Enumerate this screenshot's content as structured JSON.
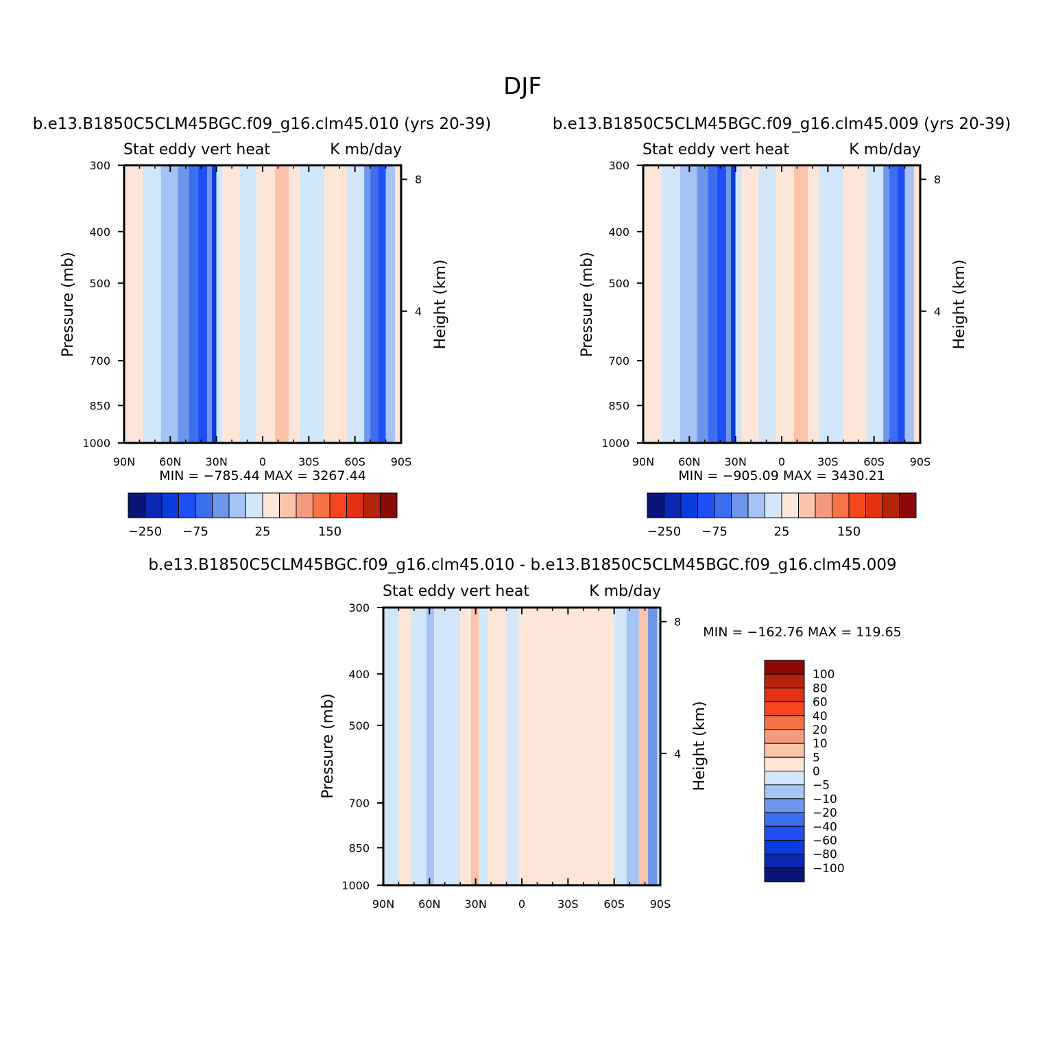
{
  "page_title": "DJF",
  "panels": [
    {
      "title": "b.e13.B1850C5CLM45BGC.f09_g16.clm45.010 (yrs 20-39)",
      "left_label": "Stat eddy vert heat",
      "right_label": "K mb/day",
      "stats": "MIN = -785.44   MAX = 3267.44",
      "ylabel": "Pressure (mb)",
      "ylabel_right": "Height (km)"
    },
    {
      "title": "b.e13.B1850C5CLM45BGC.f09_g16.clm45.009 (yrs 20-39)",
      "left_label": "Stat eddy vert heat",
      "right_label": "K mb/day",
      "stats": "MIN = -905.09   MAX = 3430.21",
      "ylabel": "Pressure (mb)",
      "ylabel_right": "Height (km)"
    },
    {
      "title": "b.e13.B1850C5CLM45BGC.f09_g16.clm45.010 - b.e13.B1850C5CLM45BGC.f09_g16.clm45.009",
      "left_label": "Stat eddy vert heat",
      "right_label": "K mb/day",
      "stats": "MIN = -162.76   MAX = 119.65",
      "ylabel": "Pressure (mb)",
      "ylabel_right": "Height (km)"
    }
  ],
  "chart_data": [
    {
      "type": "heatmap",
      "x_axis": {
        "ticks": [
          "90N",
          "60N",
          "30N",
          "0",
          "30S",
          "60S",
          "90S"
        ],
        "range": [
          90,
          -90
        ]
      },
      "y_axis": {
        "ticks": [
          300,
          400,
          500,
          700,
          850,
          1000
        ],
        "range": [
          300,
          1000
        ],
        "scale": "log"
      },
      "y_axis_right": {
        "ticks": [
          8,
          4
        ]
      },
      "colorbar": {
        "orientation": "horizontal",
        "tick_labels": [
          "-250",
          "-75",
          "25",
          "150"
        ],
        "colors": [
          "#0a1478",
          "#0a28b4",
          "#0a3cdc",
          "#1e50f5",
          "#3c6ef0",
          "#6e96eb",
          "#a5c3f5",
          "#d2e6fa",
          "#fde6d7",
          "#fac3aa",
          "#f59b7d",
          "#f57346",
          "#f5461e",
          "#e13214",
          "#b4230a",
          "#8c0a0a"
        ]
      },
      "stats": {
        "min": -785.44,
        "max": 3267.44
      }
    },
    {
      "type": "heatmap",
      "x_axis": {
        "ticks": [
          "90N",
          "60N",
          "30N",
          "0",
          "30S",
          "60S",
          "90S"
        ],
        "range": [
          90,
          -90
        ]
      },
      "y_axis": {
        "ticks": [
          300,
          400,
          500,
          700,
          850,
          1000
        ],
        "range": [
          300,
          1000
        ],
        "scale": "log"
      },
      "y_axis_right": {
        "ticks": [
          8,
          4
        ]
      },
      "colorbar": {
        "orientation": "horizontal",
        "tick_labels": [
          "-250",
          "-75",
          "25",
          "150"
        ],
        "colors": [
          "#0a1478",
          "#0a28b4",
          "#0a3cdc",
          "#1e50f5",
          "#3c6ef0",
          "#6e96eb",
          "#a5c3f5",
          "#d2e6fa",
          "#fde6d7",
          "#fac3aa",
          "#f59b7d",
          "#f57346",
          "#f5461e",
          "#e13214",
          "#b4230a",
          "#8c0a0a"
        ]
      },
      "stats": {
        "min": -905.09,
        "max": 3430.21
      }
    },
    {
      "type": "heatmap",
      "x_axis": {
        "ticks": [
          "90N",
          "60N",
          "30N",
          "0",
          "30S",
          "60S",
          "90S"
        ],
        "range": [
          90,
          -90
        ]
      },
      "y_axis": {
        "ticks": [
          300,
          400,
          500,
          700,
          850,
          1000
        ],
        "range": [
          300,
          1000
        ],
        "scale": "log"
      },
      "y_axis_right": {
        "ticks": [
          8,
          4
        ]
      },
      "colorbar": {
        "orientation": "vertical",
        "tick_labels": [
          "100",
          "80",
          "60",
          "40",
          "20",
          "10",
          "5",
          "0",
          "-5",
          "-10",
          "-20",
          "-40",
          "-60",
          "-80",
          "-100"
        ],
        "colors": [
          "#8c0a0a",
          "#b4230a",
          "#e13214",
          "#f5461e",
          "#f57346",
          "#f59b7d",
          "#fac3aa",
          "#fde6d7",
          "#d2e6fa",
          "#a5c3f5",
          "#6e96eb",
          "#3c6ef0",
          "#1e50f5",
          "#0a3cdc",
          "#0a28b4",
          "#0a1478"
        ]
      },
      "stats": {
        "min": -162.76,
        "max": 119.65
      }
    }
  ]
}
